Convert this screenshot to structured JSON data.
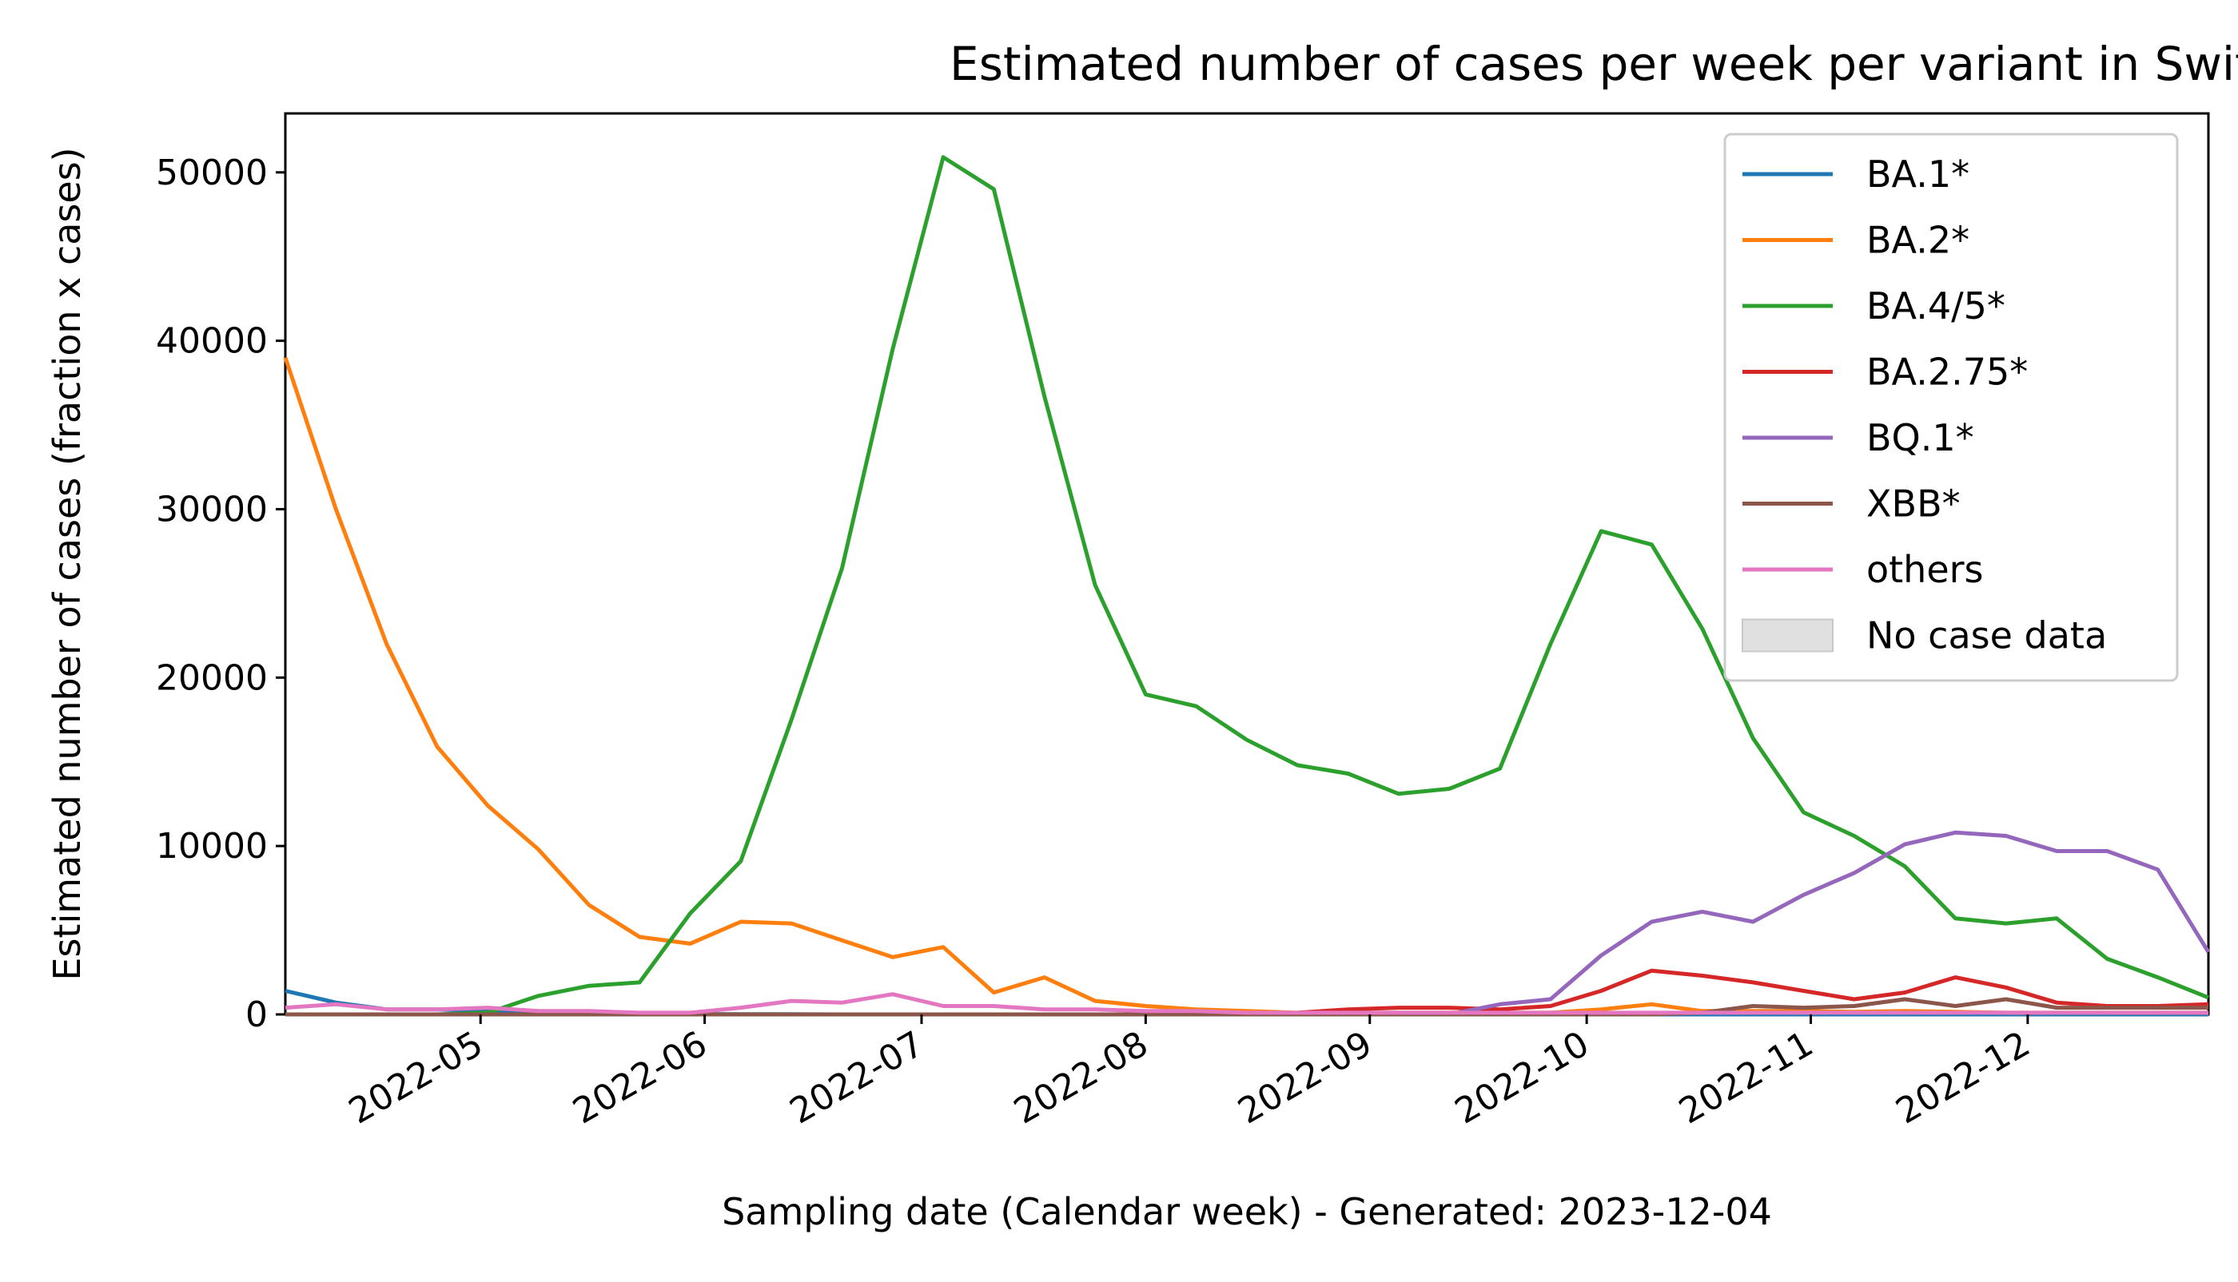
{
  "chart_data": {
    "type": "line",
    "title": "Estimated number of cases per week per variant in Switzerland",
    "xlabel": "Sampling date (Calendar week) - Generated: 2023-12-04",
    "ylabel": "Estimated number of cases (fraction x cases)",
    "xlim": [
      "2022-04-04",
      "2022-12-26"
    ],
    "ylim": [
      0,
      53500
    ],
    "x_ticks": [
      "2022-05",
      "2022-06",
      "2022-07",
      "2022-08",
      "2022-09",
      "2022-10",
      "2022-11",
      "2022-12"
    ],
    "y_ticks": [
      "0",
      "10000",
      "20000",
      "30000",
      "40000",
      "50000"
    ],
    "legend_position": "upper right",
    "grid": false,
    "x": [
      "2022-04-04",
      "2022-04-11",
      "2022-04-18",
      "2022-04-25",
      "2022-05-02",
      "2022-05-09",
      "2022-05-16",
      "2022-05-23",
      "2022-05-30",
      "2022-06-06",
      "2022-06-13",
      "2022-06-20",
      "2022-06-27",
      "2022-07-04",
      "2022-07-11",
      "2022-07-18",
      "2022-07-25",
      "2022-08-01",
      "2022-08-08",
      "2022-08-15",
      "2022-08-22",
      "2022-08-29",
      "2022-09-05",
      "2022-09-12",
      "2022-09-19",
      "2022-09-26",
      "2022-10-03",
      "2022-10-10",
      "2022-10-17",
      "2022-10-24",
      "2022-10-31",
      "2022-11-07",
      "2022-11-14",
      "2022-11-21",
      "2022-11-28",
      "2022-12-05",
      "2022-12-12",
      "2022-12-19",
      "2022-12-26"
    ],
    "series": [
      {
        "name": "BA.1*",
        "color": "#1f77b4",
        "values": [
          1400,
          700,
          300,
          300,
          200,
          100,
          50,
          30,
          20,
          10,
          10,
          0,
          0,
          0,
          0,
          0,
          0,
          0,
          0,
          0,
          0,
          0,
          0,
          0,
          0,
          0,
          0,
          0,
          0,
          0,
          0,
          0,
          0,
          0,
          0,
          0,
          0,
          0,
          0
        ]
      },
      {
        "name": "BA.2*",
        "color": "#ff7f0e",
        "values": [
          39000,
          30000,
          22000,
          15900,
          12400,
          9800,
          6500,
          4600,
          4200,
          5500,
          5400,
          4400,
          3400,
          4000,
          1300,
          2200,
          800,
          500,
          300,
          200,
          100,
          100,
          100,
          100,
          100,
          100,
          300,
          600,
          200,
          200,
          200,
          150,
          200,
          150,
          100,
          100,
          100,
          100,
          100
        ]
      },
      {
        "name": "BA.4/5*",
        "color": "#2ca02c",
        "values": [
          0,
          0,
          0,
          0,
          100,
          1100,
          1700,
          1900,
          6000,
          9100,
          17500,
          26500,
          39500,
          50900,
          49000,
          36700,
          25500,
          19000,
          18300,
          16300,
          14800,
          14300,
          13100,
          13400,
          14600,
          22000,
          28700,
          27900,
          22900,
          16400,
          12000,
          10600,
          8800,
          5700,
          5400,
          5700,
          3300,
          2200,
          1000
        ]
      },
      {
        "name": "BA.2.75*",
        "color": "#d62728",
        "values": [
          0,
          0,
          0,
          0,
          0,
          0,
          0,
          0,
          0,
          0,
          0,
          0,
          0,
          0,
          0,
          0,
          0,
          0,
          0,
          0,
          100,
          300,
          400,
          400,
          300,
          500,
          1400,
          2600,
          2300,
          1900,
          1400,
          900,
          1300,
          2200,
          1600,
          700,
          500,
          500,
          600
        ]
      },
      {
        "name": "BQ.1*",
        "color": "#9467bd",
        "values": [
          0,
          0,
          0,
          0,
          0,
          0,
          0,
          0,
          0,
          0,
          0,
          0,
          0,
          0,
          0,
          0,
          0,
          0,
          0,
          0,
          0,
          0,
          0,
          0,
          600,
          900,
          3500,
          5500,
          6100,
          5500,
          7100,
          8400,
          10100,
          10800,
          10600,
          9700,
          9700,
          8600,
          3700
        ]
      },
      {
        "name": "XBB*",
        "color": "#8c564b",
        "values": [
          0,
          0,
          0,
          0,
          0,
          0,
          0,
          0,
          0,
          0,
          0,
          0,
          0,
          0,
          0,
          0,
          0,
          0,
          0,
          0,
          0,
          0,
          0,
          0,
          0,
          0,
          0,
          0,
          100,
          500,
          400,
          500,
          900,
          500,
          900,
          400,
          400,
          400,
          400
        ]
      },
      {
        "name": "others",
        "color": "#e377c2",
        "values": [
          400,
          600,
          300,
          300,
          400,
          200,
          200,
          100,
          100,
          400,
          800,
          700,
          1200,
          500,
          500,
          300,
          300,
          200,
          200,
          100,
          100,
          100,
          100,
          100,
          100,
          100,
          100,
          100,
          100,
          100,
          100,
          100,
          100,
          100,
          100,
          100,
          100,
          100,
          100
        ]
      }
    ],
    "no_case_data_label": "No case data",
    "no_case_data_color": "#e0e0e0"
  }
}
